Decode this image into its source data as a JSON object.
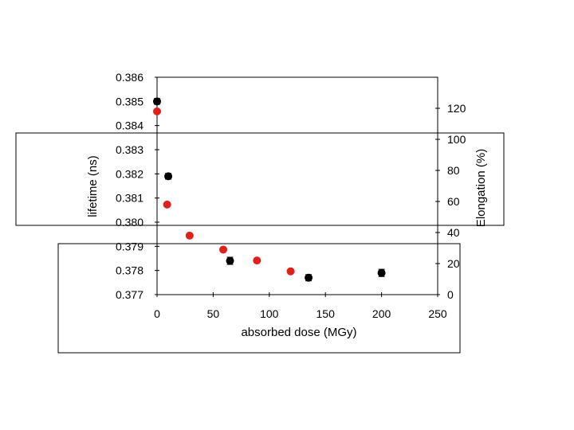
{
  "chart_data": {
    "type": "scatter",
    "xlabel": "absorbed dose (MGy)",
    "ylabel_left": "lifetime (ns)",
    "ylabel_right": "Elongation (%)",
    "xlim": [
      0,
      250
    ],
    "ylim_left": [
      0.377,
      0.386
    ],
    "ylim_right": [
      0,
      140
    ],
    "x_ticks": [
      "0",
      "50",
      "100",
      "150",
      "200",
      "250"
    ],
    "y_left_ticks": [
      "0.377",
      "0.378",
      "0.379",
      "0.380",
      "0.381",
      "0.382",
      "0.383",
      "0.384",
      "0.385",
      "0.386"
    ],
    "y_right_ticks": [
      "0",
      "20",
      "40",
      "60",
      "80",
      "100",
      "120"
    ],
    "series": [
      {
        "name": "lifetime",
        "axis": "left",
        "color": "#000000",
        "points": [
          {
            "x": 0,
            "y": 0.385,
            "err": 0.00012
          },
          {
            "x": 10,
            "y": 0.3819,
            "err": 0.00012
          },
          {
            "x": 65,
            "y": 0.3784,
            "err": 0.00015
          },
          {
            "x": 135,
            "y": 0.3777,
            "err": 0.00013
          },
          {
            "x": 200,
            "y": 0.3779,
            "err": 0.00015
          }
        ]
      },
      {
        "name": "elongation",
        "axis": "right",
        "color": "#e0201b",
        "points": [
          {
            "x": 0,
            "y": 118
          },
          {
            "x": 9,
            "y": 58
          },
          {
            "x": 29,
            "y": 38
          },
          {
            "x": 59,
            "y": 29
          },
          {
            "x": 89,
            "y": 22
          },
          {
            "x": 119,
            "y": 15
          }
        ]
      }
    ]
  }
}
